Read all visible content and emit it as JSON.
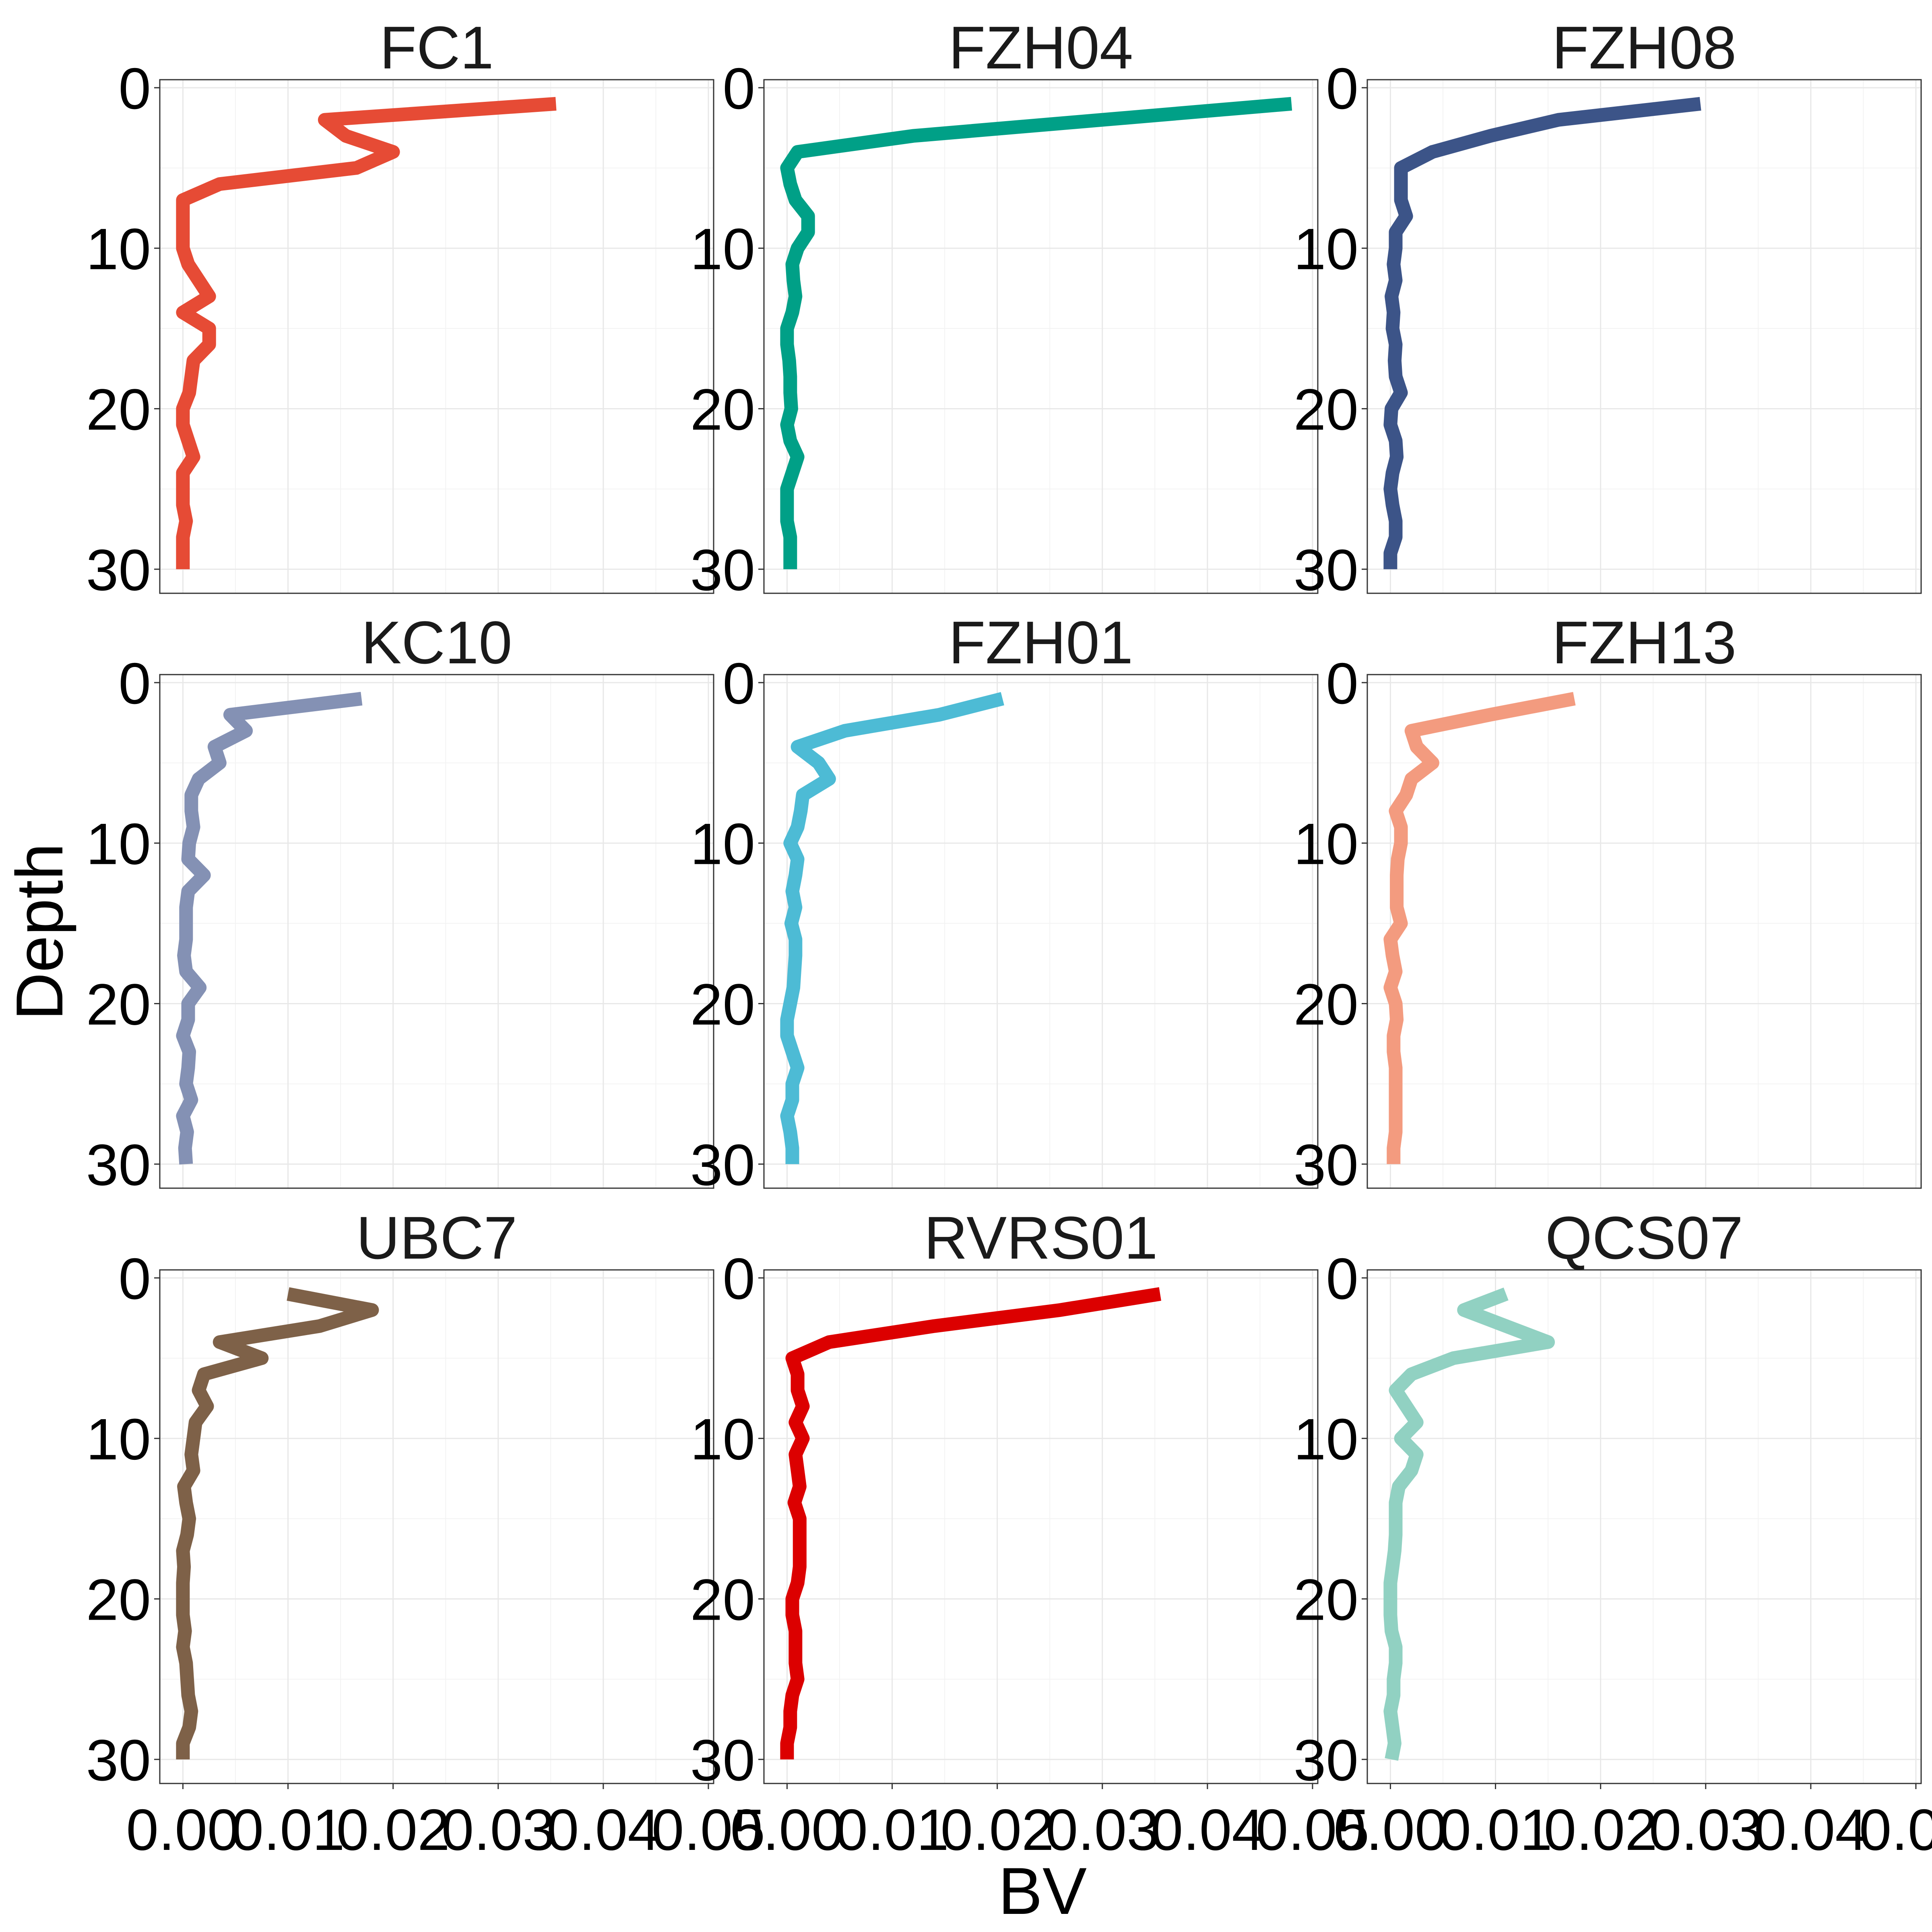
{
  "chart_data": {
    "type": "line",
    "xlabel": "BV",
    "ylabel": "Depth",
    "xlim": [
      -0.0022,
      0.0505
    ],
    "ylim": [
      31.5,
      -0.5
    ],
    "x_ticks": [
      0,
      0.01,
      0.02,
      0.03,
      0.04,
      0.05
    ],
    "x_tick_labels": [
      "0.00",
      "0.01",
      "0.02",
      "0.03",
      "0.04",
      "0.05"
    ],
    "y_ticks": [
      0,
      10,
      20,
      30
    ],
    "y_tick_labels": [
      "0",
      "10",
      "20",
      "30"
    ],
    "grid": true,
    "depth": [
      1,
      2,
      3,
      4,
      5,
      6,
      7,
      8,
      9,
      10,
      11,
      12,
      13,
      14,
      15,
      16,
      17,
      18,
      19,
      20,
      21,
      22,
      23,
      24,
      25,
      26,
      27,
      28,
      29,
      30
    ],
    "panels": [
      {
        "title": "FC1",
        "color": "#E64B35",
        "values": [
          0.0355,
          0.0135,
          0.0155,
          0.02,
          0.0165,
          0.0035,
          0.0,
          0.0,
          0.0,
          0.0,
          0.0005,
          0.0015,
          0.0025,
          0.0,
          0.0025,
          0.0025,
          0.001,
          0.0008,
          0.0006,
          0.0,
          0.0,
          0.0005,
          0.001,
          0.0,
          0.0,
          0.0,
          0.0003,
          0.0,
          0.0,
          0.0
        ]
      },
      {
        "title": "FZH04",
        "color": "#00A087",
        "values": [
          0.048,
          0.03,
          0.012,
          0.001,
          0.0,
          0.0003,
          0.0008,
          0.002,
          0.002,
          0.001,
          0.0005,
          0.0006,
          0.0008,
          0.0005,
          0.0,
          0.0,
          0.0002,
          0.0003,
          0.0003,
          0.0004,
          0.0,
          0.0003,
          0.001,
          0.0005,
          0.0,
          0.0,
          0.0,
          0.0003,
          0.0003,
          0.0003
        ]
      },
      {
        "title": "FZH08",
        "color": "#3C5488",
        "values": [
          0.0295,
          0.016,
          0.0095,
          0.004,
          0.001,
          0.001,
          0.001,
          0.0015,
          0.0005,
          0.0005,
          0.0003,
          0.0005,
          0.0001,
          0.0003,
          0.0002,
          0.0005,
          0.0004,
          0.0005,
          0.001,
          0.0001,
          0.0,
          0.0005,
          0.0006,
          0.0002,
          0.0,
          0.0002,
          0.0005,
          0.0005,
          0.0,
          0.0
        ]
      },
      {
        "title": "KC10",
        "color": "#8491B4",
        "values": [
          0.017,
          0.0045,
          0.006,
          0.003,
          0.0035,
          0.0015,
          0.0008,
          0.0008,
          0.001,
          0.0006,
          0.0005,
          0.002,
          0.0005,
          0.0003,
          0.0003,
          0.0003,
          0.0001,
          0.0003,
          0.0016,
          0.0005,
          0.0005,
          0.0,
          0.0006,
          0.0005,
          0.0003,
          0.0008,
          0.0,
          0.0004,
          0.0002,
          0.0003
        ]
      },
      {
        "title": "FZH01",
        "color": "#4DBBD5",
        "values": [
          0.0205,
          0.0145,
          0.0055,
          0.001,
          0.003,
          0.004,
          0.0015,
          0.0013,
          0.001,
          0.0003,
          0.001,
          0.0008,
          0.0005,
          0.0008,
          0.0004,
          0.0008,
          0.0008,
          0.0007,
          0.0006,
          0.0003,
          0.0,
          0.0,
          0.0005,
          0.001,
          0.0005,
          0.0005,
          0.0,
          0.0003,
          0.0005,
          0.0005
        ]
      },
      {
        "title": "FZH13",
        "color": "#F39B7F",
        "values": [
          0.0175,
          0.0095,
          0.002,
          0.0025,
          0.004,
          0.002,
          0.0015,
          0.0005,
          0.001,
          0.001,
          0.0007,
          0.0006,
          0.0006,
          0.0006,
          0.001,
          0.0,
          0.0002,
          0.0005,
          0.0,
          0.0005,
          0.0006,
          0.0003,
          0.0003,
          0.0005,
          0.0005,
          0.0005,
          0.0005,
          0.0005,
          0.0003,
          0.0003
        ]
      },
      {
        "title": "UBC7",
        "color": "#7E6148",
        "values": [
          0.01,
          0.018,
          0.013,
          0.0035,
          0.0075,
          0.002,
          0.0015,
          0.0023,
          0.0012,
          0.001,
          0.0008,
          0.001,
          0.0001,
          0.0003,
          0.0006,
          0.0004,
          0.0,
          0.0001,
          0.0,
          0.0,
          0.0,
          0.0002,
          0.0,
          0.0003,
          0.0004,
          0.0005,
          0.0008,
          0.0006,
          0.0,
          0.0
        ]
      },
      {
        "title": "RVRS01",
        "color": "#DC0000",
        "values": [
          0.0355,
          0.026,
          0.014,
          0.004,
          0.0005,
          0.001,
          0.001,
          0.0015,
          0.0008,
          0.0015,
          0.0008,
          0.001,
          0.0012,
          0.0007,
          0.0012,
          0.0012,
          0.0012,
          0.0012,
          0.001,
          0.0005,
          0.0005,
          0.0008,
          0.0008,
          0.0008,
          0.001,
          0.0005,
          0.0003,
          0.0003,
          0.0,
          0.0
        ]
      },
      {
        "title": "QCS07",
        "color": "#91D1C2",
        "values": [
          0.011,
          0.007,
          0.011,
          0.015,
          0.006,
          0.002,
          0.0005,
          0.0015,
          0.0025,
          0.001,
          0.0025,
          0.002,
          0.0008,
          0.0005,
          0.0005,
          0.0005,
          0.0004,
          0.0002,
          0.0,
          0.0,
          0.0,
          0.0001,
          0.0005,
          0.0005,
          0.0003,
          0.0003,
          0.0,
          0.0002,
          0.0004,
          0.0001
        ]
      }
    ]
  }
}
